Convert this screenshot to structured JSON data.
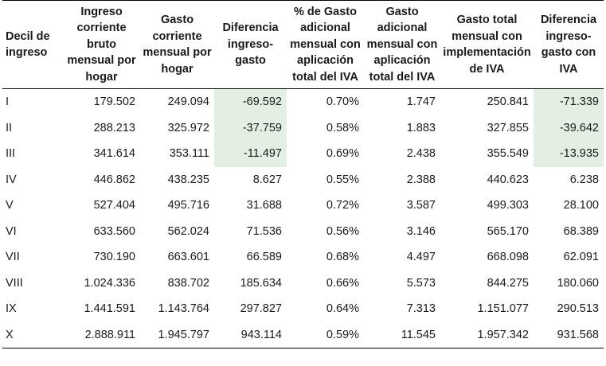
{
  "table": {
    "headers": [
      "Decil de ingreso",
      "Ingreso corriente bruto mensual por hogar",
      "Gasto corriente mensual por hogar",
      "Diferencia ingreso-gasto",
      "% de Gasto adicional mensual con aplicación total del IVA",
      "Gasto adicional mensual con aplicación total del IVA",
      "Gasto total mensual con implementación de IVA",
      "Diferencia ingreso-gasto con IVA"
    ],
    "rows": [
      [
        "I",
        "179.502",
        "249.094",
        "-69.592",
        "0.70%",
        "1.747",
        "250.841",
        "-71.339"
      ],
      [
        "II",
        "288.213",
        "325.972",
        "-37.759",
        "0.58%",
        "1.883",
        "327.855",
        "-39.642"
      ],
      [
        "III",
        "341.614",
        "353.111",
        "-11.497",
        "0.69%",
        "2.438",
        "355.549",
        "-13.935"
      ],
      [
        "IV",
        "446.862",
        "438.235",
        "8.627",
        "0.55%",
        "2.388",
        "440.623",
        "6.238"
      ],
      [
        "V",
        "527.404",
        "495.716",
        "31.688",
        "0.72%",
        "3.587",
        "499.303",
        "28.100"
      ],
      [
        "VI",
        "633.560",
        "562.024",
        "71.536",
        "0.56%",
        "3.146",
        "565.170",
        "68.389"
      ],
      [
        "VII",
        "730.190",
        "663.601",
        "66.589",
        "0.68%",
        "4.497",
        "668.098",
        "62.091"
      ],
      [
        "VIII",
        "1.024.336",
        "838.702",
        "185.634",
        "0.66%",
        "5.573",
        "844.275",
        "180.060"
      ],
      [
        "IX",
        "1.441.591",
        "1.143.764",
        "297.827",
        "0.64%",
        "7.313",
        "1.151.077",
        "290.513"
      ],
      [
        "X",
        "2.888.911",
        "1.945.797",
        "943.114",
        "0.59%",
        "11.545",
        "1.957.342",
        "931.568"
      ]
    ],
    "highlight_color": "#e3efe2"
  }
}
